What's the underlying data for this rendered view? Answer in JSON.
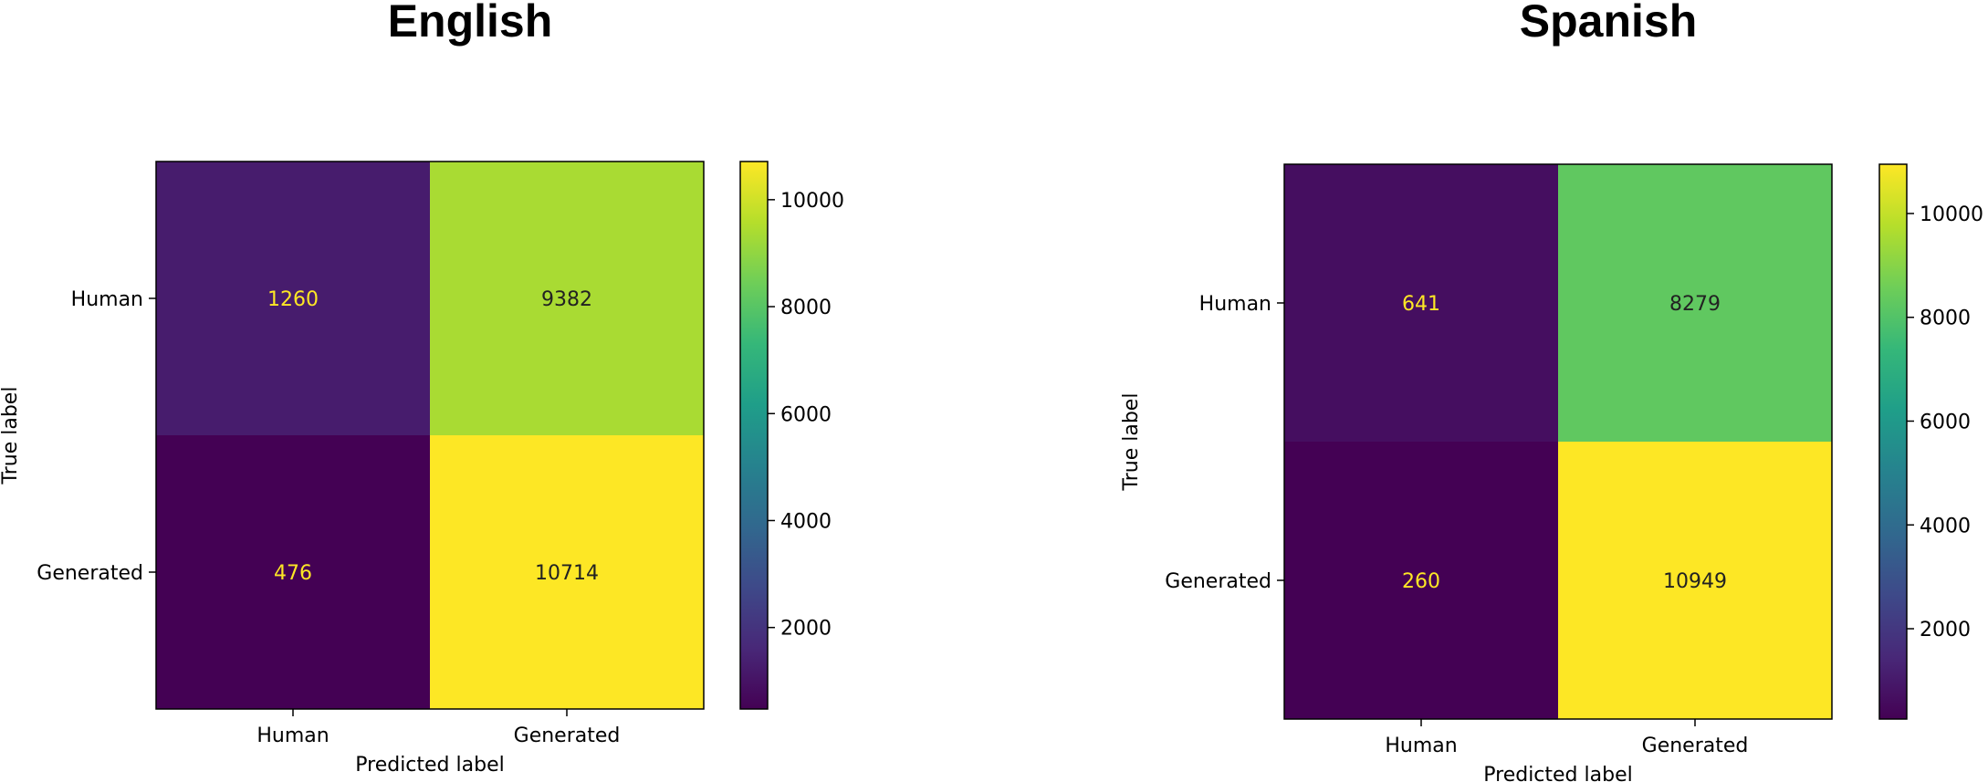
{
  "chart_data": [
    {
      "type": "heatmap",
      "title": "English",
      "xlabel": "Predicted label",
      "ylabel": "True label",
      "x_categories": [
        "Human",
        "Generated"
      ],
      "y_categories": [
        "Human",
        "Generated"
      ],
      "values": [
        [
          1260,
          9382
        ],
        [
          476,
          10714
        ]
      ],
      "colormap": "viridis",
      "colorbar": {
        "range": [
          476,
          10714
        ],
        "ticks": [
          2000,
          4000,
          6000,
          8000,
          10000
        ]
      }
    },
    {
      "type": "heatmap",
      "title": "Spanish",
      "xlabel": "Predicted label",
      "ylabel": "True label",
      "x_categories": [
        "Human",
        "Generated"
      ],
      "y_categories": [
        "Human",
        "Generated"
      ],
      "values": [
        [
          641,
          8279
        ],
        [
          260,
          10949
        ]
      ],
      "colormap": "viridis",
      "colorbar": {
        "range": [
          260,
          10949
        ],
        "ticks": [
          2000,
          4000,
          6000,
          8000,
          10000
        ]
      }
    }
  ],
  "colors": {
    "text_on_dark": "#fde725",
    "text_on_light": "#222222",
    "frame": "#000000"
  }
}
